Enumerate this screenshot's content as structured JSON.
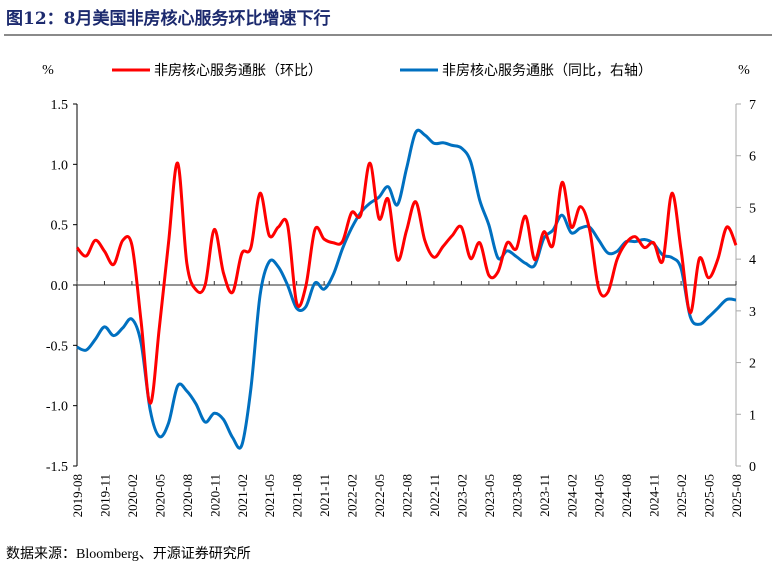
{
  "title": "图12：8月美国非房核心服务环比增速下行",
  "source": "数据来源：Bloomberg、开源证券研究所",
  "chart_data": {
    "type": "line",
    "title": "图12：8月美国非房核心服务环比增速下行",
    "ylabel_left": "%",
    "ylabel_right": "%",
    "ylim_left": [
      -1.5,
      1.5
    ],
    "ylim_right": [
      0,
      7
    ],
    "yticks_left": [
      "-1.5",
      "-1.0",
      "-0.5",
      "0.0",
      "0.5",
      "1.0",
      "1.5"
    ],
    "yticks_right": [
      "0",
      "1",
      "2",
      "3",
      "4",
      "5",
      "6",
      "7"
    ],
    "grid": false,
    "legend_position": "top",
    "x": [
      "2019-08",
      "2019-09",
      "2019-10",
      "2019-11",
      "2019-12",
      "2020-01",
      "2020-02",
      "2020-03",
      "2020-04",
      "2020-05",
      "2020-06",
      "2020-07",
      "2020-08",
      "2020-09",
      "2020-10",
      "2020-11",
      "2020-12",
      "2021-01",
      "2021-02",
      "2021-03",
      "2021-04",
      "2021-05",
      "2021-06",
      "2021-07",
      "2021-08",
      "2021-09",
      "2021-10",
      "2021-11",
      "2021-12",
      "2022-01",
      "2022-02",
      "2022-03",
      "2022-04",
      "2022-05",
      "2022-06",
      "2022-07",
      "2022-08",
      "2022-09",
      "2022-10",
      "2022-11",
      "2022-12",
      "2023-01",
      "2023-02",
      "2023-03",
      "2023-04",
      "2023-05",
      "2023-06",
      "2023-07",
      "2023-08",
      "2023-09",
      "2023-10",
      "2023-11",
      "2023-12",
      "2024-01",
      "2024-02",
      "2024-03",
      "2024-04",
      "2024-05",
      "2024-06",
      "2024-07",
      "2024-08",
      "2024-09",
      "2024-10",
      "2024-11",
      "2024-12",
      "2025-01",
      "2025-02",
      "2025-03",
      "2025-04",
      "2025-05",
      "2025-06",
      "2025-07",
      "2025-08"
    ],
    "xtick_labels": [
      "2019-08",
      "2019-11",
      "2020-02",
      "2020-05",
      "2020-08",
      "2020-11",
      "2021-02",
      "2021-05",
      "2021-08",
      "2021-11",
      "2022-02",
      "2022-05",
      "2022-08",
      "2022-11",
      "2023-02",
      "2023-05",
      "2023-08",
      "2023-11",
      "2024-02",
      "2024-05",
      "2024-08",
      "2024-11",
      "2025-02",
      "2025-05",
      "2025-08"
    ],
    "series": [
      {
        "name": "非房核心服务通胀（环比）",
        "axis": "left",
        "color": "#ff0000",
        "values": [
          0.31,
          0.24,
          0.37,
          0.28,
          0.17,
          0.37,
          0.33,
          -0.3,
          -0.98,
          -0.35,
          0.35,
          1.01,
          0.18,
          -0.04,
          0.0,
          0.46,
          0.1,
          -0.06,
          0.26,
          0.31,
          0.76,
          0.41,
          0.48,
          0.5,
          -0.15,
          -0.01,
          0.46,
          0.38,
          0.35,
          0.36,
          0.6,
          0.58,
          1.01,
          0.55,
          0.71,
          0.21,
          0.45,
          0.69,
          0.37,
          0.23,
          0.32,
          0.41,
          0.48,
          0.22,
          0.35,
          0.08,
          0.11,
          0.35,
          0.3,
          0.57,
          0.21,
          0.44,
          0.33,
          0.85,
          0.48,
          0.65,
          0.46,
          -0.03,
          -0.06,
          0.21,
          0.35,
          0.4,
          0.31,
          0.35,
          0.2,
          0.76,
          0.29,
          -0.23,
          0.22,
          0.06,
          0.21,
          0.48,
          0.33
        ]
      },
      {
        "name": "非房核心服务通胀（同比，右轴）",
        "axis": "right",
        "color": "#0070c0",
        "values": [
          2.3,
          2.24,
          2.45,
          2.69,
          2.52,
          2.67,
          2.84,
          2.38,
          1.08,
          0.57,
          0.83,
          1.55,
          1.45,
          1.2,
          0.85,
          1.02,
          0.9,
          0.55,
          0.4,
          1.5,
          3.3,
          3.95,
          3.85,
          3.5,
          3.05,
          3.08,
          3.54,
          3.42,
          3.7,
          4.2,
          4.6,
          4.9,
          5.08,
          5.2,
          5.4,
          5.05,
          5.75,
          6.45,
          6.4,
          6.24,
          6.25,
          6.2,
          6.15,
          5.89,
          5.14,
          4.66,
          4.02,
          4.16,
          4.05,
          3.92,
          3.88,
          4.4,
          4.56,
          4.85,
          4.51,
          4.6,
          4.62,
          4.37,
          4.12,
          4.15,
          4.34,
          4.34,
          4.38,
          4.3,
          4.08,
          4.03,
          3.82,
          2.89,
          2.74,
          2.88,
          3.05,
          3.22,
          3.21
        ]
      }
    ]
  }
}
